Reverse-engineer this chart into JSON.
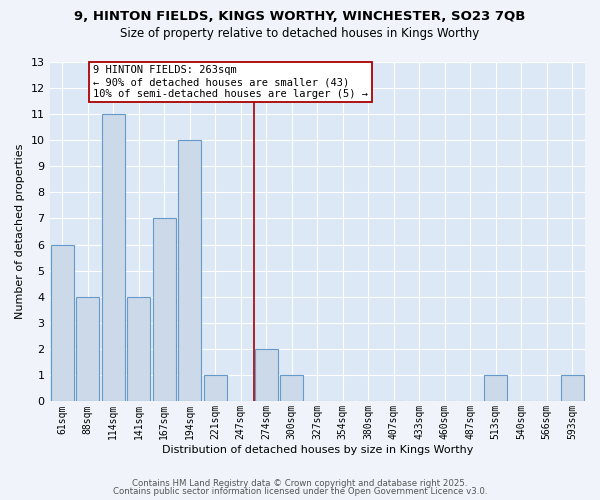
{
  "title": "9, HINTON FIELDS, KINGS WORTHY, WINCHESTER, SO23 7QB",
  "subtitle": "Size of property relative to detached houses in Kings Worthy",
  "xlabel": "Distribution of detached houses by size in Kings Worthy",
  "ylabel": "Number of detached properties",
  "bar_color": "#ccd9e8",
  "bar_edge_color": "#6699cc",
  "categories": [
    "61sqm",
    "88sqm",
    "114sqm",
    "141sqm",
    "167sqm",
    "194sqm",
    "221sqm",
    "247sqm",
    "274sqm",
    "300sqm",
    "327sqm",
    "354sqm",
    "380sqm",
    "407sqm",
    "433sqm",
    "460sqm",
    "487sqm",
    "513sqm",
    "540sqm",
    "566sqm",
    "593sqm"
  ],
  "values": [
    6,
    4,
    11,
    4,
    7,
    10,
    1,
    0,
    2,
    1,
    0,
    0,
    0,
    0,
    0,
    0,
    0,
    1,
    0,
    0,
    1
  ],
  "ylim": [
    0,
    13
  ],
  "yticks": [
    0,
    1,
    2,
    3,
    4,
    5,
    6,
    7,
    8,
    9,
    10,
    11,
    12,
    13
  ],
  "vline_x": 7.5,
  "vline_color": "#aa0000",
  "annotation_title": "9 HINTON FIELDS: 263sqm",
  "annotation_line1": "← 90% of detached houses are smaller (43)",
  "annotation_line2": "10% of semi-detached houses are larger (5) →",
  "annotation_box_color": "#ffffff",
  "annotation_box_edge": "#aa0000",
  "bg_color": "#dce8f5",
  "grid_color": "#ffffff",
  "footer_line1": "Contains HM Land Registry data © Crown copyright and database right 2025.",
  "footer_line2": "Contains public sector information licensed under the Open Government Licence v3.0.",
  "fig_bg_color": "#f0f4fa"
}
